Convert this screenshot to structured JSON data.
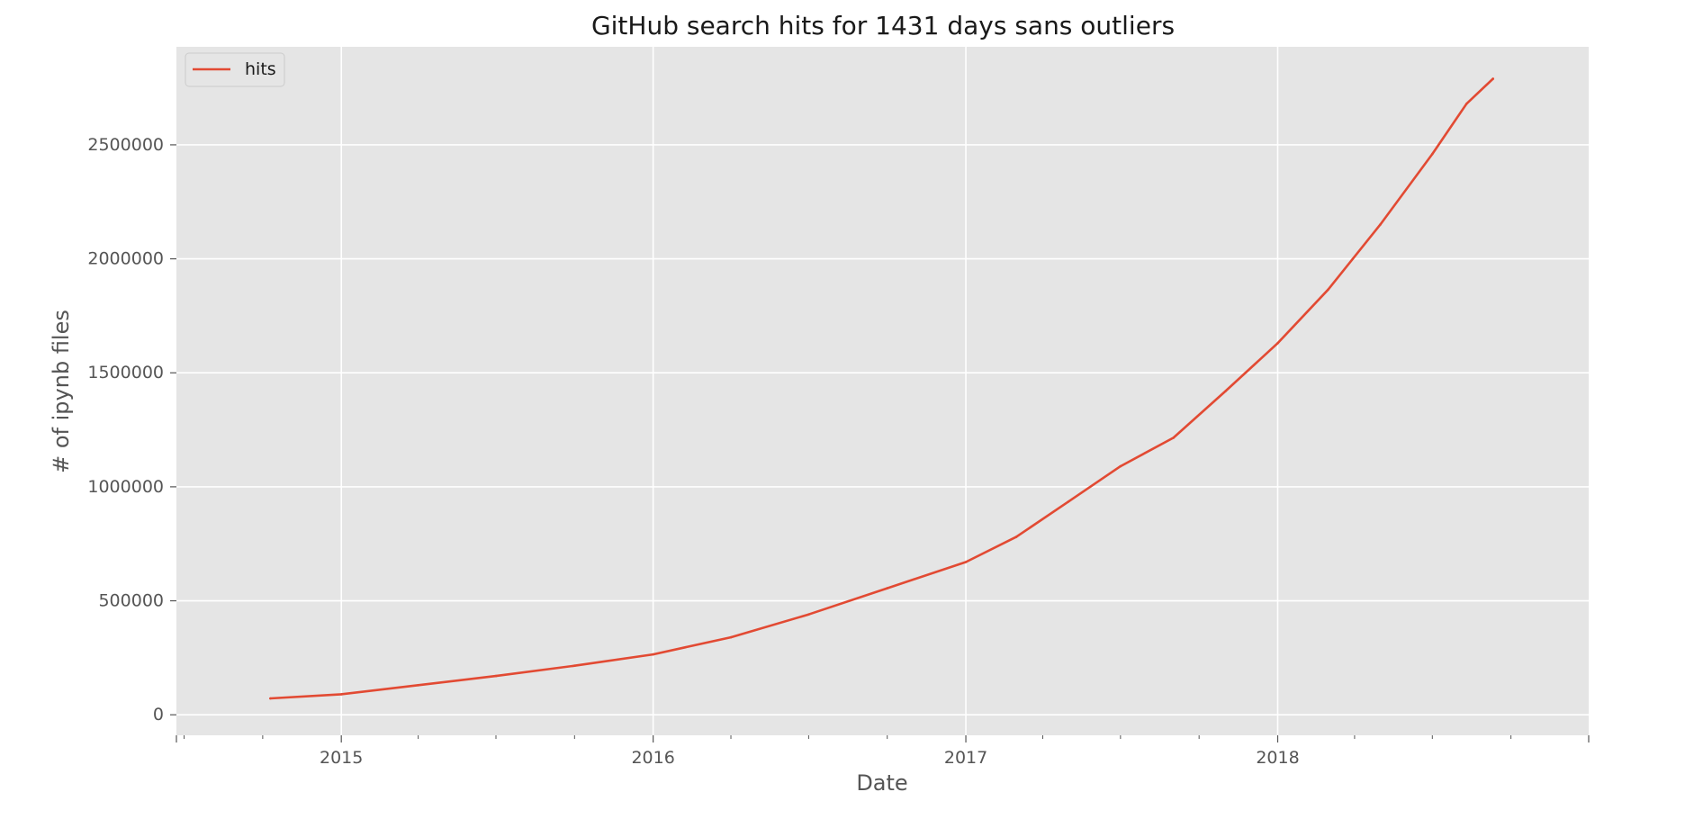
{
  "chart_data": {
    "type": "line",
    "title": "GitHub search hits for 1431 days sans outliers",
    "xlabel": "Date",
    "ylabel": "# of ipynb files",
    "x_axis_kind": "date",
    "xlim": [
      "2014-06-22",
      "2018-12-31"
    ],
    "ylim": [
      -90000,
      2930000
    ],
    "x_ticks": [
      {
        "value": "2015-01-01",
        "label": "2015"
      },
      {
        "value": "2016-01-01",
        "label": "2016"
      },
      {
        "value": "2017-01-01",
        "label": "2017"
      },
      {
        "value": "2018-01-01",
        "label": "2018"
      }
    ],
    "x_minor_ticks": [
      "2014-07-01",
      "2014-10-01",
      "2015-04-01",
      "2015-07-01",
      "2015-10-01",
      "2016-04-01",
      "2016-07-01",
      "2016-10-01",
      "2017-04-01",
      "2017-07-01",
      "2017-10-01",
      "2018-04-01",
      "2018-07-01",
      "2018-10-01"
    ],
    "y_ticks": [
      0,
      500000,
      1000000,
      1500000,
      2000000,
      2500000
    ],
    "y_tick_labels": [
      "0",
      "500000",
      "1000000",
      "1500000",
      "2000000",
      "2500000"
    ],
    "grid": true,
    "legend": {
      "position": "top-left",
      "entries": [
        "hits"
      ]
    },
    "colors": {
      "line": "#E24A33",
      "plot_bg": "#E5E5E5",
      "grid": "#FFFFFF"
    },
    "series": [
      {
        "name": "hits",
        "x": [
          "2014-10-10",
          "2015-01-01",
          "2015-04-01",
          "2015-07-01",
          "2015-10-01",
          "2016-01-01",
          "2016-04-01",
          "2016-07-01",
          "2016-10-01",
          "2017-01-01",
          "2017-03-01",
          "2017-05-01",
          "2017-07-01",
          "2017-09-01",
          "2017-11-01",
          "2018-01-01",
          "2018-03-01",
          "2018-05-01",
          "2018-07-01",
          "2018-08-10",
          "2018-09-10"
        ],
        "y": [
          72000,
          90000,
          130000,
          170000,
          215000,
          265000,
          340000,
          440000,
          555000,
          670000,
          780000,
          935000,
          1090000,
          1215000,
          1420000,
          1630000,
          1865000,
          2150000,
          2460000,
          2680000,
          2790000
        ]
      }
    ]
  }
}
